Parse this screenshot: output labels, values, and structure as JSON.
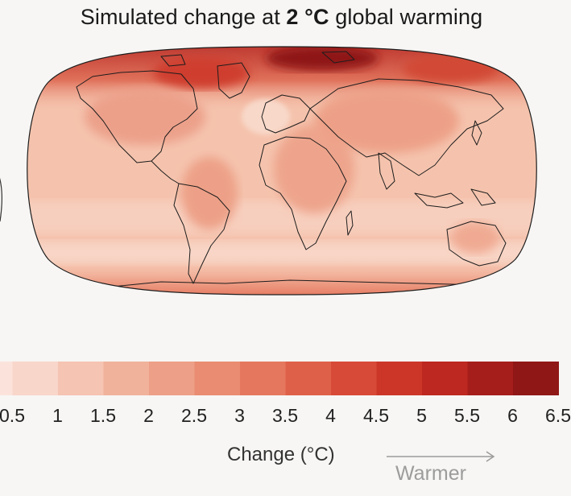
{
  "title": {
    "prefix": "Simulated change at ",
    "bold": "2 °C",
    "suffix": " global warming"
  },
  "colorbar": {
    "tick_labels": [
      "0.5",
      "1",
      "1.5",
      "2",
      "2.5",
      "3",
      "3.5",
      "4",
      "4.5",
      "5",
      "5.5",
      "6",
      "6.5"
    ],
    "colors": [
      "#fbe3dc",
      "#f9d6ca",
      "#f5c4b2",
      "#f1b29b",
      "#eda087",
      "#e98c72",
      "#e5775e",
      "#df6049",
      "#d84a38",
      "#cc3629",
      "#bd2820",
      "#a61e1b",
      "#8f1716"
    ],
    "label": "Change (°C)",
    "direction_label": "Warmer"
  },
  "map": {
    "projection": "Robinson",
    "variable": "simulated temperature change",
    "base_color": "#f4bea8",
    "ocean_color": "#f6c9b6",
    "land_color": "#efae95",
    "arctic_color": "#c9352c"
  }
}
